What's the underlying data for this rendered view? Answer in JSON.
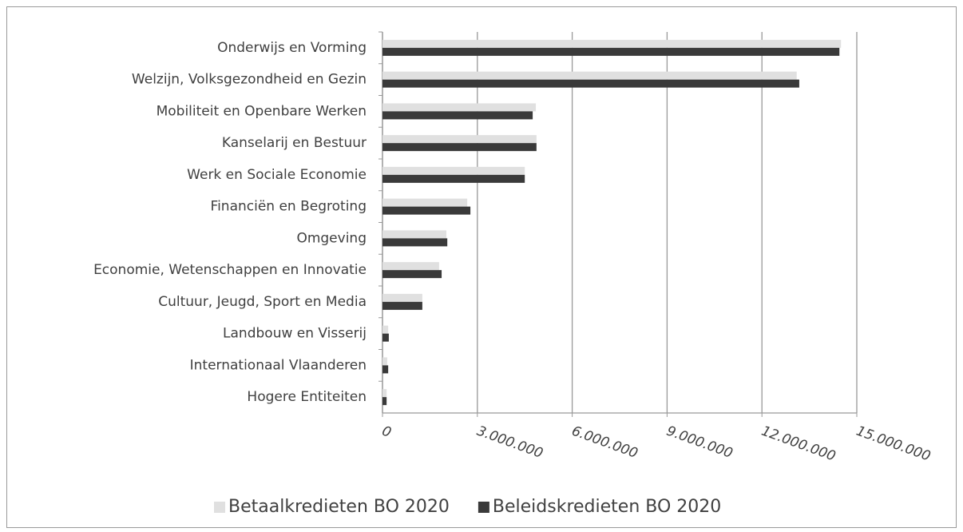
{
  "chart_data": {
    "type": "bar",
    "orientation": "horizontal",
    "categories": [
      "Onderwijs en Vorming",
      "Welzijn, Volksgezondheid en Gezin",
      "Mobiliteit en Openbare Werken",
      "Kanselarij en Bestuur",
      "Werk en Sociale Economie",
      "Financiën en Begroting",
      "Omgeving",
      "Economie, Wetenschappen en Innovatie",
      "Cultuur, Jeugd, Sport en Media",
      "Landbouw en Visserij",
      "Internationaal Vlaanderen",
      "Hogere Entiteiten"
    ],
    "series": [
      {
        "name": "Betaalkredieten BO 2020",
        "color": "#e0e0e0",
        "values": [
          14500000,
          13100000,
          4850000,
          4870000,
          4500000,
          2680000,
          2020000,
          1790000,
          1260000,
          180000,
          150000,
          130000
        ]
      },
      {
        "name": "Beleidskredieten BO 2020",
        "color": "#3a3a3a",
        "values": [
          14450000,
          13180000,
          4750000,
          4870000,
          4500000,
          2780000,
          2050000,
          1870000,
          1260000,
          200000,
          180000,
          130000
        ]
      }
    ],
    "xlim": [
      0,
      15000000
    ],
    "xticks": [
      0,
      {
        "value": 3000000,
        "label": "3.000.000"
      },
      {
        "value": 6000000,
        "label": "6.000.000"
      },
      {
        "value": 9000000,
        "label": "9.000.000"
      },
      {
        "value": 12000000,
        "label": "12.000.000"
      },
      {
        "value": 15000000,
        "label": "15.000.000"
      }
    ],
    "grid": true,
    "legend": "bottom"
  }
}
